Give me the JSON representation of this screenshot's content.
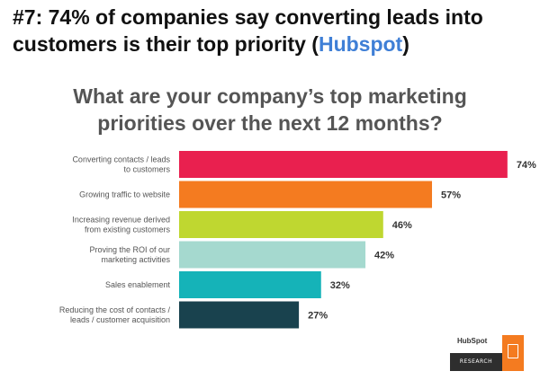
{
  "headline": {
    "text": "#7: 74% of companies say converting leads into customers is their top priority (",
    "source": "Hubspot",
    "close": ")"
  },
  "chart_data": {
    "type": "bar",
    "orientation": "horizontal",
    "title": "What are your company’s top marketing priorities over the next 12 months?",
    "categories": [
      "Converting contacts / leads to customers",
      "Growing traffic to website",
      "Increasing revenue derived from existing customers",
      "Proving the ROI of our marketing activities",
      "Sales enablement",
      "Reducing the cost of contacts / leads / customer acquisition"
    ],
    "label_lines": [
      [
        "Converting contacts / leads",
        "to customers"
      ],
      [
        "Growing traffic to website"
      ],
      [
        "Increasing revenue derived",
        "from existing customers"
      ],
      [
        "Proving the ROI of our",
        "marketing activities"
      ],
      [
        "Sales enablement"
      ],
      [
        "Reducing the cost of contacts /",
        "leads / customer acquisition"
      ]
    ],
    "values": [
      74,
      57,
      46,
      42,
      32,
      27
    ],
    "value_labels": [
      "74%",
      "57%",
      "46%",
      "42%",
      "32%",
      "27%"
    ],
    "colors": [
      "#e9204f",
      "#f47b20",
      "#bfd730",
      "#a5d9cf",
      "#15b3b8",
      "#19424e"
    ],
    "xlim": [
      0,
      100
    ],
    "grid": false,
    "legend": "none"
  },
  "brand": {
    "name": "HubSpot",
    "research": "RESEARCH",
    "icon": "clipboard-pulse-icon"
  }
}
